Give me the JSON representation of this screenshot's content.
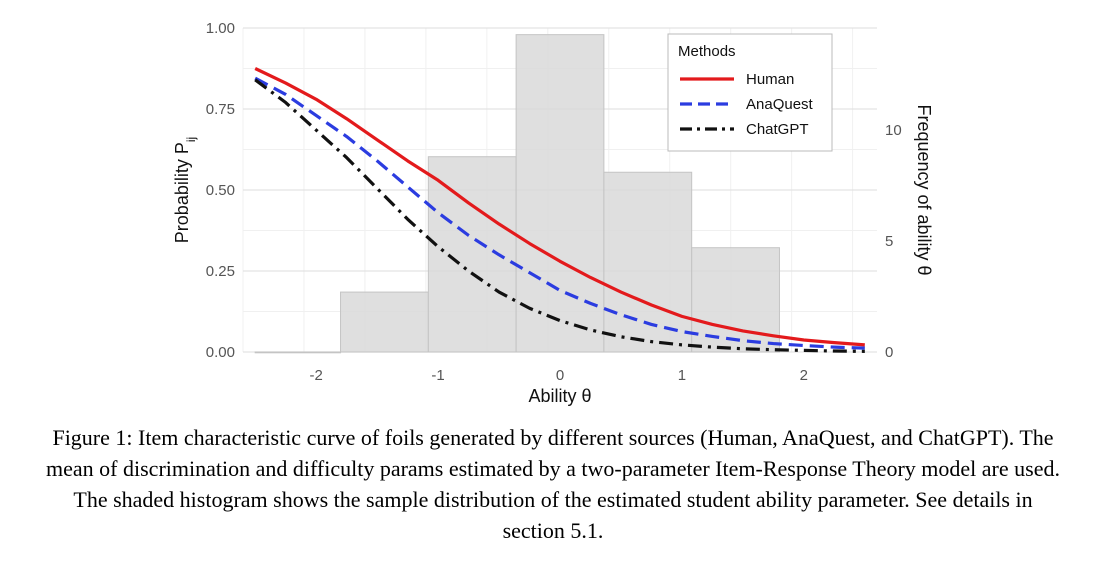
{
  "figure": {
    "caption": "Figure 1: Item characteristic curve of foils generated by different sources (Human, AnaQuest, and ChatGPT). The mean of discrimination and difficulty params estimated by a two-parameter Item-Response Theory model are used. The shaded histogram shows the sample distribution of the estimated student ability parameter. See details in section 5.1."
  },
  "chart_data": {
    "type": "line",
    "title": "",
    "xlabel": "Ability θ",
    "ylabel": "Probability P",
    "ylabel_subscript": "ij",
    "y2label": "Frequency of ability θ",
    "xlim": [
      -2.6,
      2.6
    ],
    "ylim": [
      0,
      1.0
    ],
    "y2lim": [
      0,
      14.6
    ],
    "x_ticks": [
      -2,
      -1,
      0,
      1,
      2
    ],
    "x_tick_labels": [
      "-2",
      "-1",
      "0",
      "1",
      "2"
    ],
    "y_ticks": [
      0,
      0.25,
      0.5,
      0.75,
      1.0
    ],
    "y_tick_labels": [
      "0.00",
      "0.25",
      "0.50",
      "0.75",
      "1.00"
    ],
    "y2_ticks": [
      0,
      5,
      10
    ],
    "y2_tick_labels": [
      "0",
      "5",
      "10"
    ],
    "grid": true,
    "legend": {
      "title": "Methods",
      "position": "top-right"
    },
    "series": [
      {
        "name": "Human",
        "color": "#e31a1c",
        "dash": "solid",
        "x": [
          -2.5,
          -2.25,
          -2.0,
          -1.75,
          -1.5,
          -1.25,
          -1.0,
          -0.75,
          -0.5,
          -0.25,
          0.0,
          0.25,
          0.5,
          0.75,
          1.0,
          1.25,
          1.5,
          1.75,
          2.0,
          2.25,
          2.5
        ],
        "y": [
          0.875,
          0.83,
          0.78,
          0.72,
          0.655,
          0.59,
          0.53,
          0.46,
          0.395,
          0.335,
          0.28,
          0.23,
          0.185,
          0.145,
          0.11,
          0.085,
          0.065,
          0.05,
          0.037,
          0.029,
          0.022
        ]
      },
      {
        "name": "AnaQuest",
        "color": "#2b3ce0",
        "dash": "dashed",
        "x": [
          -2.5,
          -2.25,
          -2.0,
          -1.75,
          -1.5,
          -1.25,
          -1.0,
          -0.75,
          -0.5,
          -0.25,
          0.0,
          0.25,
          0.5,
          0.75,
          1.0,
          1.25,
          1.5,
          1.75,
          2.0,
          2.25,
          2.5
        ],
        "y": [
          0.845,
          0.795,
          0.73,
          0.665,
          0.59,
          0.51,
          0.43,
          0.36,
          0.3,
          0.245,
          0.19,
          0.15,
          0.115,
          0.085,
          0.063,
          0.048,
          0.035,
          0.026,
          0.02,
          0.015,
          0.012
        ]
      },
      {
        "name": "ChatGPT",
        "color": "#111111",
        "dash": "dashdot",
        "x": [
          -2.5,
          -2.25,
          -2.0,
          -1.75,
          -1.5,
          -1.25,
          -1.0,
          -0.75,
          -0.5,
          -0.25,
          0.0,
          0.25,
          0.5,
          0.75,
          1.0,
          1.25,
          1.5,
          1.75,
          2.0,
          2.25,
          2.5
        ],
        "y": [
          0.84,
          0.77,
          0.685,
          0.6,
          0.505,
          0.41,
          0.325,
          0.25,
          0.185,
          0.135,
          0.097,
          0.068,
          0.047,
          0.032,
          0.022,
          0.015,
          0.01,
          0.007,
          0.005,
          0.003,
          0.002
        ]
      }
    ],
    "histogram": {
      "axis": "y2",
      "fill": "#d9d9d9",
      "edge": "#c4c4c4",
      "bin_edges": [
        -2.5,
        -1.8,
        -1.08,
        -0.36,
        0.36,
        1.08,
        1.8
      ],
      "counts": [
        0,
        2.7,
        8.8,
        14.3,
        8.1,
        4.7
      ]
    }
  }
}
